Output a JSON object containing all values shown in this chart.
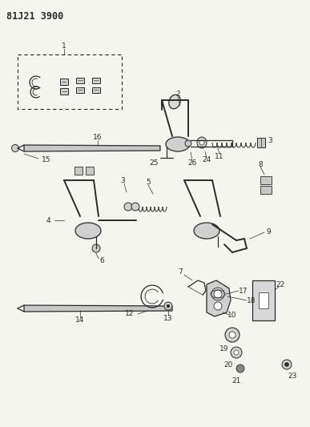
{
  "title": "81J21 3900",
  "bg_color": "#f5f5f0",
  "line_color": "#2a2a2a",
  "title_fontsize": 8.5,
  "label_fontsize": 6.5,
  "fig_width": 3.87,
  "fig_height": 5.33,
  "dpi": 100
}
